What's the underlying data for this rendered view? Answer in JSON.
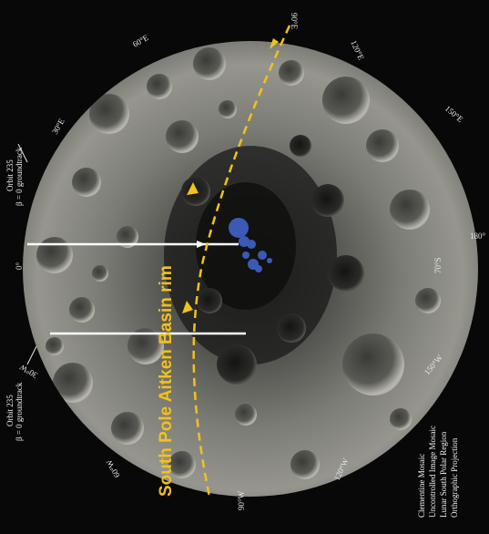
{
  "map": {
    "longitude_labels": {
      "e90": "90°E",
      "e120": "120°E",
      "e150": "150°E",
      "e180": "180°",
      "w150": "150°W",
      "w120": "120°W",
      "w90": "90°W",
      "w60": "60°W",
      "w30": "30°W",
      "e0": "0°",
      "e30": "30°E",
      "e60": "60°E"
    },
    "latitude_labels": {
      "lat70w": "70°S",
      "lat70e": "70°S"
    },
    "orbit_upper": {
      "line1": "Orbit 235",
      "line2": "β = 0 groundtrack"
    },
    "orbit_lower": {
      "line1": "Orbit 235",
      "line2": "β = 0 groundtrack"
    },
    "basin_label": "South Pole Aitken Basin rim",
    "legend": [
      "Clementine Mosaic",
      "Uncontrolled Image Mosaic",
      "Lunar South Polar Region",
      "Orthographic Projection"
    ],
    "colors": {
      "background": "#080808",
      "surface": "#8a8a84",
      "rim_line": "#f2c21a",
      "groundtrack": "#ffffff",
      "ice_blue": "#3f63c8",
      "label": "#e8e8e8"
    }
  }
}
